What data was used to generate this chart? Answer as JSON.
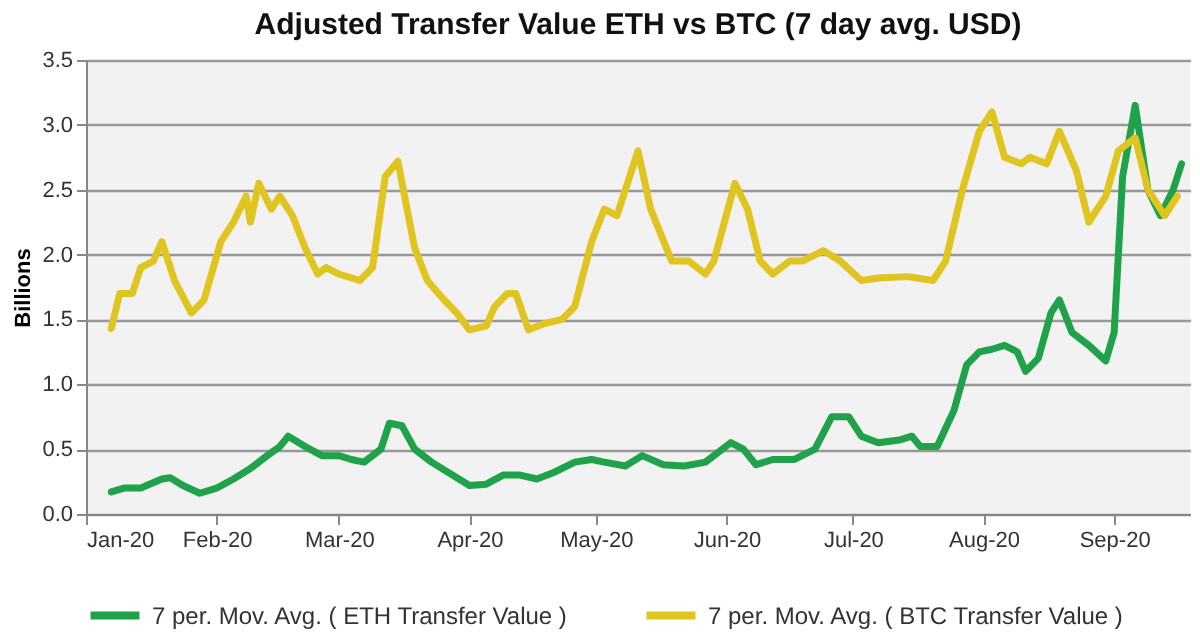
{
  "chart_data": {
    "type": "line",
    "title": "Adjusted Transfer Value ETH vs BTC (7 day avg. USD)",
    "ylabel": "Billions",
    "xlim": [
      "2020-01-01",
      "2020-09-19"
    ],
    "xticks": [
      {
        "value": "2020-01-01",
        "label": "Jan-20"
      },
      {
        "value": "2020-02-01",
        "label": "Feb-20"
      },
      {
        "value": "2020-03-01",
        "label": "Mar-20"
      },
      {
        "value": "2020-04-01",
        "label": "Apr-20"
      },
      {
        "value": "2020-05-01",
        "label": "May-20"
      },
      {
        "value": "2020-06-01",
        "label": "Jun-20"
      },
      {
        "value": "2020-07-01",
        "label": "Jul-20"
      },
      {
        "value": "2020-08-01",
        "label": "Aug-20"
      },
      {
        "value": "2020-09-01",
        "label": "Sep-20"
      }
    ],
    "ylim": [
      0,
      3.5
    ],
    "yticks": [
      {
        "value": 0,
        "label": "0.0"
      },
      {
        "value": 0.5,
        "label": "0.5"
      },
      {
        "value": 1,
        "label": "1.0"
      },
      {
        "value": 1.5,
        "label": "1.5"
      },
      {
        "value": 2,
        "label": "2.0"
      },
      {
        "value": 2.5,
        "label": "2.5"
      },
      {
        "value": 3,
        "label": "3.0"
      },
      {
        "value": 3.5,
        "label": "3.5"
      }
    ],
    "grid": "y",
    "legend": "bottom",
    "line_style": "solid",
    "marker": "none",
    "series": [
      {
        "name": "7 per. Mov. Avg. ( ETH Transfer Value )",
        "color": "#1fa24a",
        "x": [
          "2020-01-07",
          "2020-01-10",
          "2020-01-14",
          "2020-01-19",
          "2020-01-21",
          "2020-01-24",
          "2020-01-28",
          "2020-02-01",
          "2020-02-05",
          "2020-02-09",
          "2020-02-13",
          "2020-02-16",
          "2020-02-18",
          "2020-02-22",
          "2020-02-26",
          "2020-03-01",
          "2020-03-04",
          "2020-03-07",
          "2020-03-11",
          "2020-03-13",
          "2020-03-16",
          "2020-03-19",
          "2020-03-23",
          "2020-03-27",
          "2020-04-01",
          "2020-04-05",
          "2020-04-09",
          "2020-04-13",
          "2020-04-17",
          "2020-04-21",
          "2020-04-26",
          "2020-04-30",
          "2020-05-03",
          "2020-05-08",
          "2020-05-12",
          "2020-05-17",
          "2020-05-22",
          "2020-05-27",
          "2020-06-02",
          "2020-06-05",
          "2020-06-08",
          "2020-06-12",
          "2020-06-17",
          "2020-06-22",
          "2020-06-26",
          "2020-06-30",
          "2020-07-03",
          "2020-07-07",
          "2020-07-12",
          "2020-07-15",
          "2020-07-17",
          "2020-07-21",
          "2020-07-25",
          "2020-07-28",
          "2020-07-31",
          "2020-08-03",
          "2020-08-06",
          "2020-08-09",
          "2020-08-11",
          "2020-08-14",
          "2020-08-17",
          "2020-08-19",
          "2020-08-22",
          "2020-08-26",
          "2020-08-30",
          "2020-09-01",
          "2020-09-03",
          "2020-09-06",
          "2020-09-09",
          "2020-09-12",
          "2020-09-15",
          "2020-09-17"
        ],
        "values": [
          0.17,
          0.2,
          0.2,
          0.27,
          0.28,
          0.22,
          0.16,
          0.2,
          0.27,
          0.35,
          0.45,
          0.52,
          0.6,
          0.52,
          0.45,
          0.45,
          0.42,
          0.4,
          0.5,
          0.7,
          0.68,
          0.5,
          0.4,
          0.32,
          0.22,
          0.23,
          0.3,
          0.3,
          0.27,
          0.32,
          0.4,
          0.42,
          0.4,
          0.37,
          0.45,
          0.38,
          0.37,
          0.4,
          0.55,
          0.5,
          0.38,
          0.42,
          0.42,
          0.5,
          0.75,
          0.75,
          0.6,
          0.55,
          0.57,
          0.6,
          0.52,
          0.52,
          0.8,
          1.15,
          1.25,
          1.27,
          1.3,
          1.25,
          1.1,
          1.2,
          1.55,
          1.65,
          1.4,
          1.3,
          1.18,
          1.4,
          2.6,
          3.15,
          2.5,
          2.3,
          2.5,
          2.7
        ]
      },
      {
        "name": "7 per. Mov. Avg. ( BTC Transfer Value )",
        "color": "#e0c41f",
        "x": [
          "2020-01-07",
          "2020-01-09",
          "2020-01-12",
          "2020-01-14",
          "2020-01-17",
          "2020-01-19",
          "2020-01-22",
          "2020-01-26",
          "2020-01-29",
          "2020-02-02",
          "2020-02-05",
          "2020-02-08",
          "2020-02-09",
          "2020-02-11",
          "2020-02-14",
          "2020-02-16",
          "2020-02-19",
          "2020-02-22",
          "2020-02-25",
          "2020-02-27",
          "2020-03-01",
          "2020-03-06",
          "2020-03-09",
          "2020-03-12",
          "2020-03-15",
          "2020-03-19",
          "2020-03-22",
          "2020-03-26",
          "2020-03-29",
          "2020-04-01",
          "2020-04-05",
          "2020-04-07",
          "2020-04-10",
          "2020-04-12",
          "2020-04-15",
          "2020-04-19",
          "2020-04-23",
          "2020-04-26",
          "2020-04-30",
          "2020-05-03",
          "2020-05-06",
          "2020-05-08",
          "2020-05-11",
          "2020-05-14",
          "2020-05-19",
          "2020-05-23",
          "2020-05-27",
          "2020-05-29",
          "2020-06-03",
          "2020-06-06",
          "2020-06-09",
          "2020-06-12",
          "2020-06-16",
          "2020-06-19",
          "2020-06-24",
          "2020-06-28",
          "2020-07-03",
          "2020-07-07",
          "2020-07-14",
          "2020-07-20",
          "2020-07-23",
          "2020-07-27",
          "2020-07-31",
          "2020-08-03",
          "2020-08-06",
          "2020-08-10",
          "2020-08-12",
          "2020-08-16",
          "2020-08-19",
          "2020-08-23",
          "2020-08-26",
          "2020-08-30",
          "2020-09-02",
          "2020-09-06",
          "2020-09-09",
          "2020-09-13",
          "2020-09-16"
        ],
        "values": [
          1.43,
          1.7,
          1.7,
          1.9,
          1.95,
          2.1,
          1.8,
          1.55,
          1.65,
          2.1,
          2.25,
          2.45,
          2.25,
          2.55,
          2.35,
          2.45,
          2.3,
          2.05,
          1.85,
          1.9,
          1.85,
          1.8,
          1.9,
          2.6,
          2.72,
          2.05,
          1.8,
          1.65,
          1.55,
          1.42,
          1.45,
          1.6,
          1.7,
          1.7,
          1.42,
          1.47,
          1.5,
          1.6,
          2.1,
          2.35,
          2.3,
          2.5,
          2.8,
          2.35,
          1.95,
          1.95,
          1.85,
          1.95,
          2.55,
          2.35,
          1.95,
          1.85,
          1.95,
          1.95,
          2.03,
          1.95,
          1.8,
          1.82,
          1.83,
          1.8,
          1.95,
          2.5,
          2.95,
          3.1,
          2.75,
          2.7,
          2.75,
          2.7,
          2.95,
          2.65,
          2.25,
          2.45,
          2.8,
          2.9,
          2.5,
          2.3,
          2.45
        ]
      }
    ]
  }
}
